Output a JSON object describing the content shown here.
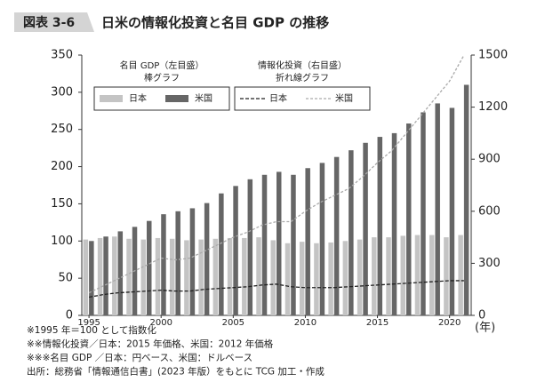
{
  "chart_data": {
    "type": "bar",
    "figure_label": "図表 3-6",
    "title": "日米の情報化投資と名目 GDP の推移",
    "x": [
      1995,
      1996,
      1997,
      1998,
      1999,
      2000,
      2001,
      2002,
      2003,
      2004,
      2005,
      2006,
      2007,
      2008,
      2009,
      2010,
      2011,
      2012,
      2013,
      2014,
      2015,
      2016,
      2017,
      2018,
      2019,
      2020,
      2021
    ],
    "xlim": [
      1994.5,
      2021.5
    ],
    "xticks": [
      1995,
      2000,
      2005,
      2010,
      2015,
      2020
    ],
    "x_unit": "(年)",
    "ylim": [
      0,
      350
    ],
    "yticks": [
      0,
      50,
      100,
      150,
      200,
      250,
      300,
      350
    ],
    "y2lim": [
      0,
      1500
    ],
    "y2ticks": [
      0,
      300,
      600,
      900,
      1200,
      1500
    ],
    "legend_groups": [
      {
        "title": [
          "名目 GDP（左目盛）",
          "棒グラフ"
        ],
        "series": [
          0,
          1
        ]
      },
      {
        "title": [
          "情報化投資（右目盛）",
          "折れ線グラフ"
        ],
        "series": [
          2,
          3
        ]
      }
    ],
    "series": [
      {
        "name": "日本",
        "type": "bar",
        "color": "#c4c4c4",
        "values": [
          102,
          104,
          106,
          103,
          102,
          104,
          103,
          101,
          102,
          103,
          104,
          104,
          105,
          101,
          97,
          99,
          97,
          98,
          100,
          102,
          105,
          105,
          107,
          108,
          108,
          105,
          108
        ]
      },
      {
        "name": "米国",
        "type": "bar",
        "color": "#666666",
        "values": [
          100,
          106,
          113,
          119,
          127,
          136,
          140,
          144,
          151,
          164,
          174,
          183,
          189,
          193,
          189,
          198,
          205,
          213,
          222,
          232,
          240,
          245,
          258,
          273,
          285,
          279,
          310
        ]
      },
      {
        "name": "日本",
        "type": "line",
        "axis": "y2",
        "color": "#222222",
        "dash": "4 2",
        "values": [
          105,
          120,
          130,
          135,
          140,
          145,
          140,
          140,
          150,
          155,
          160,
          165,
          175,
          180,
          165,
          160,
          160,
          160,
          165,
          170,
          175,
          180,
          185,
          190,
          195,
          200,
          200
        ]
      },
      {
        "name": "米国",
        "type": "line",
        "axis": "y2",
        "color": "#aaaaaa",
        "dash": "3 2",
        "values": [
          130,
          170,
          210,
          250,
          290,
          330,
          320,
          330,
          370,
          410,
          450,
          480,
          520,
          540,
          540,
          600,
          650,
          690,
          730,
          800,
          880,
          950,
          1050,
          1150,
          1250,
          1350,
          1500
        ]
      }
    ],
    "notes": [
      "※1995 年＝100 として指数化",
      "※※情報化投資／日本：2015 年価格、米国：2012 年価格",
      "※※※名目 GDP ／日本：円ベース、米国：ドルベース",
      "出所：総務省「情報通信白書」(2023 年版）をもとに TCG 加工・作成"
    ]
  }
}
